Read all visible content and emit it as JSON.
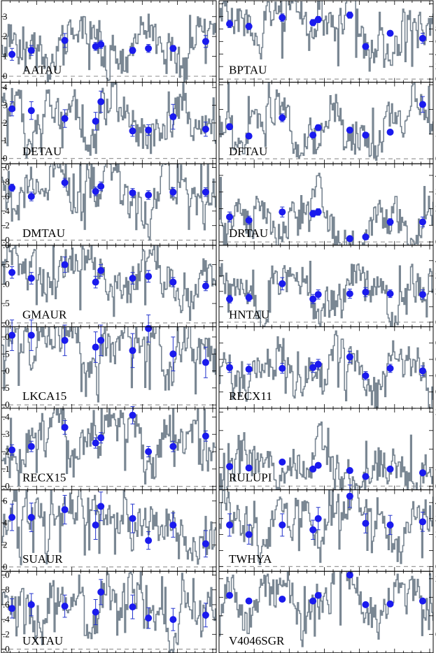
{
  "chart_data": {
    "type": "line",
    "layout": "grid",
    "rows": 8,
    "cols": 2,
    "colors": {
      "trace": "#7a8793",
      "points": "#1a1aee",
      "errorbars": "#2233cc",
      "zero_line": "#9a9a9a"
    },
    "point_x": [
      0.06,
      0.17,
      0.36,
      0.535,
      0.565,
      0.745,
      0.835,
      0.975,
      1.16
    ],
    "panels": [
      {
        "name": "AATAU",
        "ylim": [
          -0.3,
          3.8
        ],
        "yticks": [
          0,
          1,
          2,
          3
        ],
        "tick_labels": [
          "0",
          "1",
          "2",
          "3"
        ],
        "axis_side": "left",
        "points": [
          {
            "x": 0.06,
            "y": 1.1,
            "err": 0.3
          },
          {
            "x": 0.17,
            "y": 1.3,
            "err": 0.25
          },
          {
            "x": 0.36,
            "y": 1.8,
            "err": 0.35
          },
          {
            "x": 0.535,
            "y": 1.5,
            "err": 0.2
          },
          {
            "x": 0.565,
            "y": 1.6,
            "err": 0.2
          },
          {
            "x": 0.745,
            "y": 1.3,
            "err": 0.15
          },
          {
            "x": 0.835,
            "y": 1.4,
            "err": 0.2
          },
          {
            "x": 0.975,
            "y": 1.4,
            "err": 0.15
          },
          {
            "x": 1.16,
            "y": 1.75,
            "err": 0.3
          }
        ]
      },
      {
        "name": "BPTAU",
        "ylim": [
          -0.5,
          12.5
        ],
        "yticks": [
          0,
          2,
          4,
          6,
          8,
          10,
          12
        ],
        "tick_labels": [
          "0",
          "2",
          "4",
          "6",
          "8",
          "10",
          "12"
        ],
        "axis_side": "right",
        "points": [
          {
            "x": 0.06,
            "y": 8.8,
            "err": 0.6
          },
          {
            "x": 0.17,
            "y": 8.4,
            "err": 0.5
          },
          {
            "x": 0.36,
            "y": 9.8,
            "err": 0.6
          },
          {
            "x": 0.535,
            "y": 9.0,
            "err": 0.5
          },
          {
            "x": 0.565,
            "y": 9.5,
            "err": 0.5
          },
          {
            "x": 0.745,
            "y": 10.2,
            "err": 0.5
          },
          {
            "x": 0.835,
            "y": 5.2,
            "err": 0.4
          },
          {
            "x": 0.975,
            "y": 7.3,
            "err": 0.4
          },
          {
            "x": 1.16,
            "y": 6.5,
            "err": 0.8
          }
        ]
      },
      {
        "name": "DETAU",
        "ylim": [
          -0.3,
          4.3
        ],
        "yticks": [
          0,
          1,
          2,
          3,
          4
        ],
        "tick_labels": [
          "0",
          "1",
          "2",
          "3",
          "4"
        ],
        "axis_side": "left",
        "points": [
          {
            "x": 0.06,
            "y": 2.8,
            "err": 0.4
          },
          {
            "x": 0.17,
            "y": 2.7,
            "err": 0.5
          },
          {
            "x": 0.36,
            "y": 2.25,
            "err": 0.5
          },
          {
            "x": 0.535,
            "y": 2.1,
            "err": 0.5
          },
          {
            "x": 0.565,
            "y": 3.2,
            "err": 0.6
          },
          {
            "x": 0.745,
            "y": 1.55,
            "err": 0.3
          },
          {
            "x": 0.835,
            "y": 1.6,
            "err": 0.3
          },
          {
            "x": 0.975,
            "y": 2.35,
            "err": 0.7
          },
          {
            "x": 1.16,
            "y": 1.65,
            "err": 0.4
          }
        ]
      },
      {
        "name": "DFTAU",
        "ylim": [
          -1,
          15.5
        ],
        "yticks": [
          0,
          5,
          10,
          15
        ],
        "tick_labels": [
          "0",
          "5",
          "10",
          "15"
        ],
        "axis_side": "right",
        "points": [
          {
            "x": 0.06,
            "y": 6.5,
            "err": 0.6
          },
          {
            "x": 0.17,
            "y": 4.6,
            "err": 0.5
          },
          {
            "x": 0.36,
            "y": 8.3,
            "err": 0.8
          },
          {
            "x": 0.535,
            "y": 4.8,
            "err": 0.5
          },
          {
            "x": 0.565,
            "y": 6.3,
            "err": 0.6
          },
          {
            "x": 0.745,
            "y": 5.8,
            "err": 0.5
          },
          {
            "x": 0.835,
            "y": 4.8,
            "err": 0.5
          },
          {
            "x": 0.975,
            "y": 5.4,
            "err": 0.5
          },
          {
            "x": 1.16,
            "y": 11.0,
            "err": 1.6
          }
        ]
      },
      {
        "name": "DMTAU",
        "ylim": [
          -0.07,
          1.05
        ],
        "yticks": [
          0,
          0.2,
          0.4,
          0.6,
          0.8,
          1.0
        ],
        "tick_labels": [
          ".0",
          ".2",
          ".4",
          ".6",
          ".8",
          ".0"
        ],
        "axis_side": "left",
        "points": [
          {
            "x": 0.06,
            "y": 0.72,
            "err": 0.05
          },
          {
            "x": 0.17,
            "y": 0.6,
            "err": 0.06
          },
          {
            "x": 0.36,
            "y": 0.79,
            "err": 0.06
          },
          {
            "x": 0.535,
            "y": 0.67,
            "err": 0.06
          },
          {
            "x": 0.565,
            "y": 0.74,
            "err": 0.06
          },
          {
            "x": 0.745,
            "y": 0.65,
            "err": 0.06
          },
          {
            "x": 0.835,
            "y": 0.62,
            "err": 0.06
          },
          {
            "x": 0.975,
            "y": 0.66,
            "err": 0.06
          },
          {
            "x": 1.16,
            "y": 0.66,
            "err": 0.06
          }
        ]
      },
      {
        "name": "DRTAU",
        "ylim": [
          -2,
          47
        ],
        "yticks": [
          0,
          10,
          20,
          30,
          40
        ],
        "tick_labels": [
          "0",
          "10",
          "20",
          "30",
          "40"
        ],
        "axis_side": "right",
        "points": [
          {
            "x": 0.06,
            "y": 15,
            "err": 3
          },
          {
            "x": 0.17,
            "y": 13,
            "err": 2.5
          },
          {
            "x": 0.36,
            "y": 18,
            "err": 3
          },
          {
            "x": 0.535,
            "y": 17,
            "err": 2
          },
          {
            "x": 0.565,
            "y": 18,
            "err": 2
          },
          {
            "x": 0.745,
            "y": 2,
            "err": 0.5
          },
          {
            "x": 0.835,
            "y": 3,
            "err": 0.5
          },
          {
            "x": 0.975,
            "y": 12,
            "err": 2
          },
          {
            "x": 1.16,
            "y": 12,
            "err": 3
          }
        ]
      },
      {
        "name": "GMAUR",
        "ylim": [
          -0.1,
          2.0
        ],
        "yticks": [
          0,
          0.5,
          1.0,
          1.5,
          2.0
        ],
        "tick_labels": [
          ".0",
          ".5",
          ".0",
          ".5",
          ".0"
        ],
        "axis_side": "left",
        "points": [
          {
            "x": 0.06,
            "y": 1.3,
            "err": 0.15
          },
          {
            "x": 0.17,
            "y": 1.15,
            "err": 0.15
          },
          {
            "x": 0.36,
            "y": 1.5,
            "err": 0.2
          },
          {
            "x": 0.535,
            "y": 1.05,
            "err": 0.15
          },
          {
            "x": 0.565,
            "y": 1.35,
            "err": 0.15
          },
          {
            "x": 0.745,
            "y": 1.15,
            "err": 0.15
          },
          {
            "x": 0.835,
            "y": 1.2,
            "err": 0.15
          },
          {
            "x": 0.975,
            "y": 1.05,
            "err": 0.12
          },
          {
            "x": 1.16,
            "y": 0.95,
            "err": 0.12
          }
        ]
      },
      {
        "name": "HNTAU",
        "ylim": [
          -0.3,
          5.0
        ],
        "yticks": [
          0,
          1,
          2,
          3,
          4
        ],
        "tick_labels": [
          "0",
          "1",
          "2",
          "3",
          "4"
        ],
        "axis_side": "right",
        "points": [
          {
            "x": 0.06,
            "y": 1.5,
            "err": 0.25
          },
          {
            "x": 0.17,
            "y": 1.6,
            "err": 0.25
          },
          {
            "x": 0.36,
            "y": 2.5,
            "err": 0.4
          },
          {
            "x": 0.535,
            "y": 1.5,
            "err": 0.3
          },
          {
            "x": 0.565,
            "y": 1.8,
            "err": 0.3
          },
          {
            "x": 0.745,
            "y": 1.85,
            "err": 0.3
          },
          {
            "x": 0.835,
            "y": 1.95,
            "err": 0.3
          },
          {
            "x": 0.975,
            "y": 1.85,
            "err": 0.25
          },
          {
            "x": 1.16,
            "y": 1.8,
            "err": 0.3
          }
        ]
      },
      {
        "name": "LKCA15",
        "ylim": [
          -0.1,
          2.3
        ],
        "yticks": [
          0,
          0.5,
          1.0,
          1.5,
          2.0
        ],
        "tick_labels": [
          ".0",
          ".5",
          ".0",
          ".5",
          ".0"
        ],
        "axis_side": "left",
        "points": [
          {
            "x": 0.06,
            "y": 2.05,
            "err": 0.45
          },
          {
            "x": 0.17,
            "y": 2.05,
            "err": 0.45
          },
          {
            "x": 0.36,
            "y": 1.9,
            "err": 0.45
          },
          {
            "x": 0.535,
            "y": 1.7,
            "err": 0.45
          },
          {
            "x": 0.565,
            "y": 1.9,
            "err": 0.45
          },
          {
            "x": 0.745,
            "y": 1.6,
            "err": 0.5
          },
          {
            "x": 0.835,
            "y": 2.25,
            "err": 0.4
          },
          {
            "x": 0.975,
            "y": 1.5,
            "err": 0.5
          },
          {
            "x": 1.16,
            "y": 1.25,
            "err": 0.45
          }
        ]
      },
      {
        "name": "RECX11",
        "ylim": [
          0.0,
          1.0
        ],
        "yticks": [
          0.2,
          0.4,
          0.6,
          0.8
        ],
        "tick_labels": [
          "0.",
          "0.",
          "0.",
          "0."
        ],
        "axis_side": "right",
        "points": [
          {
            "x": 0.06,
            "y": 0.5,
            "err": 0.06
          },
          {
            "x": 0.17,
            "y": 0.48,
            "err": 0.06
          },
          {
            "x": 0.36,
            "y": 0.49,
            "err": 0.06
          },
          {
            "x": 0.535,
            "y": 0.5,
            "err": 0.06
          },
          {
            "x": 0.565,
            "y": 0.54,
            "err": 0.06
          },
          {
            "x": 0.745,
            "y": 0.63,
            "err": 0.07
          },
          {
            "x": 0.835,
            "y": 0.4,
            "err": 0.05
          },
          {
            "x": 0.975,
            "y": 0.49,
            "err": 0.05
          },
          {
            "x": 1.16,
            "y": 0.46,
            "err": 0.06
          }
        ]
      },
      {
        "name": "RECX15",
        "ylim": [
          -0.02,
          0.45
        ],
        "yticks": [
          0,
          0.1,
          0.2,
          0.3,
          0.4
        ],
        "tick_labels": [
          ".0",
          ".1",
          ".2",
          ".3",
          ".4"
        ],
        "axis_side": "left",
        "points": [
          {
            "x": 0.06,
            "y": 0.21,
            "err": 0.03
          },
          {
            "x": 0.17,
            "y": 0.23,
            "err": 0.03
          },
          {
            "x": 0.36,
            "y": 0.34,
            "err": 0.04
          },
          {
            "x": 0.535,
            "y": 0.25,
            "err": 0.03
          },
          {
            "x": 0.565,
            "y": 0.28,
            "err": 0.03
          },
          {
            "x": 0.745,
            "y": 0.41,
            "err": 0.05
          },
          {
            "x": 0.835,
            "y": 0.2,
            "err": 0.03
          },
          {
            "x": 0.975,
            "y": 0.23,
            "err": 0.03
          },
          {
            "x": 1.16,
            "y": 0.29,
            "err": 0.03
          }
        ]
      },
      {
        "name": "RULUPI",
        "ylim": [
          -1,
          21
        ],
        "yticks": [
          0,
          5,
          10,
          15,
          20
        ],
        "tick_labels": [
          "0",
          "5",
          "10",
          "15",
          "20"
        ],
        "axis_side": "right",
        "points": [
          {
            "x": 0.06,
            "y": 5.3,
            "err": 0.5
          },
          {
            "x": 0.17,
            "y": 4.9,
            "err": 0.5
          },
          {
            "x": 0.36,
            "y": 6.5,
            "err": 0.6
          },
          {
            "x": 0.535,
            "y": 4.6,
            "err": 0.5
          },
          {
            "x": 0.565,
            "y": 5.6,
            "err": 0.5
          },
          {
            "x": 0.745,
            "y": 4.2,
            "err": 0.4
          },
          {
            "x": 0.835,
            "y": 2.6,
            "err": 0.3
          },
          {
            "x": 0.975,
            "y": 4.6,
            "err": 0.4
          },
          {
            "x": 1.16,
            "y": 3.6,
            "err": 0.4
          }
        ]
      },
      {
        "name": "SUAUR",
        "ylim": [
          -0.4,
          7.0
        ],
        "yticks": [
          0,
          2,
          4,
          6
        ],
        "tick_labels": [
          "0",
          "2",
          "4",
          "6"
        ],
        "axis_side": "left",
        "points": [
          {
            "x": 0.06,
            "y": 4.5,
            "err": 1.2
          },
          {
            "x": 0.17,
            "y": 4.5,
            "err": 1.3
          },
          {
            "x": 0.36,
            "y": 5.2,
            "err": 1.3
          },
          {
            "x": 0.535,
            "y": 3.8,
            "err": 1.3
          },
          {
            "x": 0.565,
            "y": 5.5,
            "err": 1.3
          },
          {
            "x": 0.745,
            "y": 4.4,
            "err": 1.3
          },
          {
            "x": 0.835,
            "y": 2.4,
            "err": 0.8
          },
          {
            "x": 0.975,
            "y": 3.8,
            "err": 1.1
          },
          {
            "x": 1.16,
            "y": 2.1,
            "err": 1.2
          }
        ]
      },
      {
        "name": "TWHYA",
        "ylim": [
          -0.3,
          4.8
        ],
        "yticks": [
          0,
          1,
          2,
          3,
          4
        ],
        "tick_labels": [
          "0",
          "1",
          "2",
          "3",
          "4"
        ],
        "axis_side": "right",
        "points": [
          {
            "x": 0.06,
            "y": 2.6,
            "err": 0.7
          },
          {
            "x": 0.17,
            "y": 2.0,
            "err": 0.6
          },
          {
            "x": 0.36,
            "y": 2.6,
            "err": 0.7
          },
          {
            "x": 0.535,
            "y": 2.3,
            "err": 0.6
          },
          {
            "x": 0.565,
            "y": 3.0,
            "err": 0.7
          },
          {
            "x": 0.745,
            "y": 4.4,
            "err": 0.7
          },
          {
            "x": 0.835,
            "y": 2.7,
            "err": 0.6
          },
          {
            "x": 0.975,
            "y": 2.6,
            "err": 0.6
          },
          {
            "x": 1.16,
            "y": 2.8,
            "err": 0.6
          }
        ]
      },
      {
        "name": "UXTAU",
        "ylim": [
          -0.05,
          1.05
        ],
        "yticks": [
          0,
          0.2,
          0.4,
          0.6,
          0.8,
          1.0
        ],
        "tick_labels": [
          ".0",
          ".2",
          ".4",
          ".6",
          ".8",
          ".0"
        ],
        "axis_side": "left",
        "points": [
          {
            "x": 0.06,
            "y": 0.55,
            "err": 0.13
          },
          {
            "x": 0.17,
            "y": 0.6,
            "err": 0.15
          },
          {
            "x": 0.36,
            "y": 0.58,
            "err": 0.15
          },
          {
            "x": 0.535,
            "y": 0.5,
            "err": 0.17
          },
          {
            "x": 0.565,
            "y": 0.77,
            "err": 0.17
          },
          {
            "x": 0.745,
            "y": 0.57,
            "err": 0.16
          },
          {
            "x": 0.835,
            "y": 0.42,
            "err": 0.14
          },
          {
            "x": 0.975,
            "y": 0.4,
            "err": 0.15
          },
          {
            "x": 1.16,
            "y": 0.46,
            "err": 0.16
          }
        ]
      },
      {
        "name": "V4046SGR",
        "ylim": [
          0.0,
          2.2
        ],
        "yticks": [
          0.5,
          1.0,
          1.5,
          2.0
        ],
        "tick_labels": [
          "0.",
          "1.",
          "1.",
          "2."
        ],
        "axis_side": "right",
        "points": [
          {
            "x": 0.06,
            "y": 1.55,
            "err": 0.06
          },
          {
            "x": 0.17,
            "y": 1.4,
            "err": 0.06
          },
          {
            "x": 0.36,
            "y": 1.45,
            "err": 0.06
          },
          {
            "x": 0.535,
            "y": 1.4,
            "err": 0.06
          },
          {
            "x": 0.565,
            "y": 1.55,
            "err": 0.06
          },
          {
            "x": 0.745,
            "y": 2.1,
            "err": 0.07
          },
          {
            "x": 0.835,
            "y": 1.3,
            "err": 0.06
          },
          {
            "x": 0.975,
            "y": 1.32,
            "err": 0.06
          },
          {
            "x": 1.16,
            "y": 1.4,
            "err": 0.06
          }
        ]
      }
    ]
  }
}
